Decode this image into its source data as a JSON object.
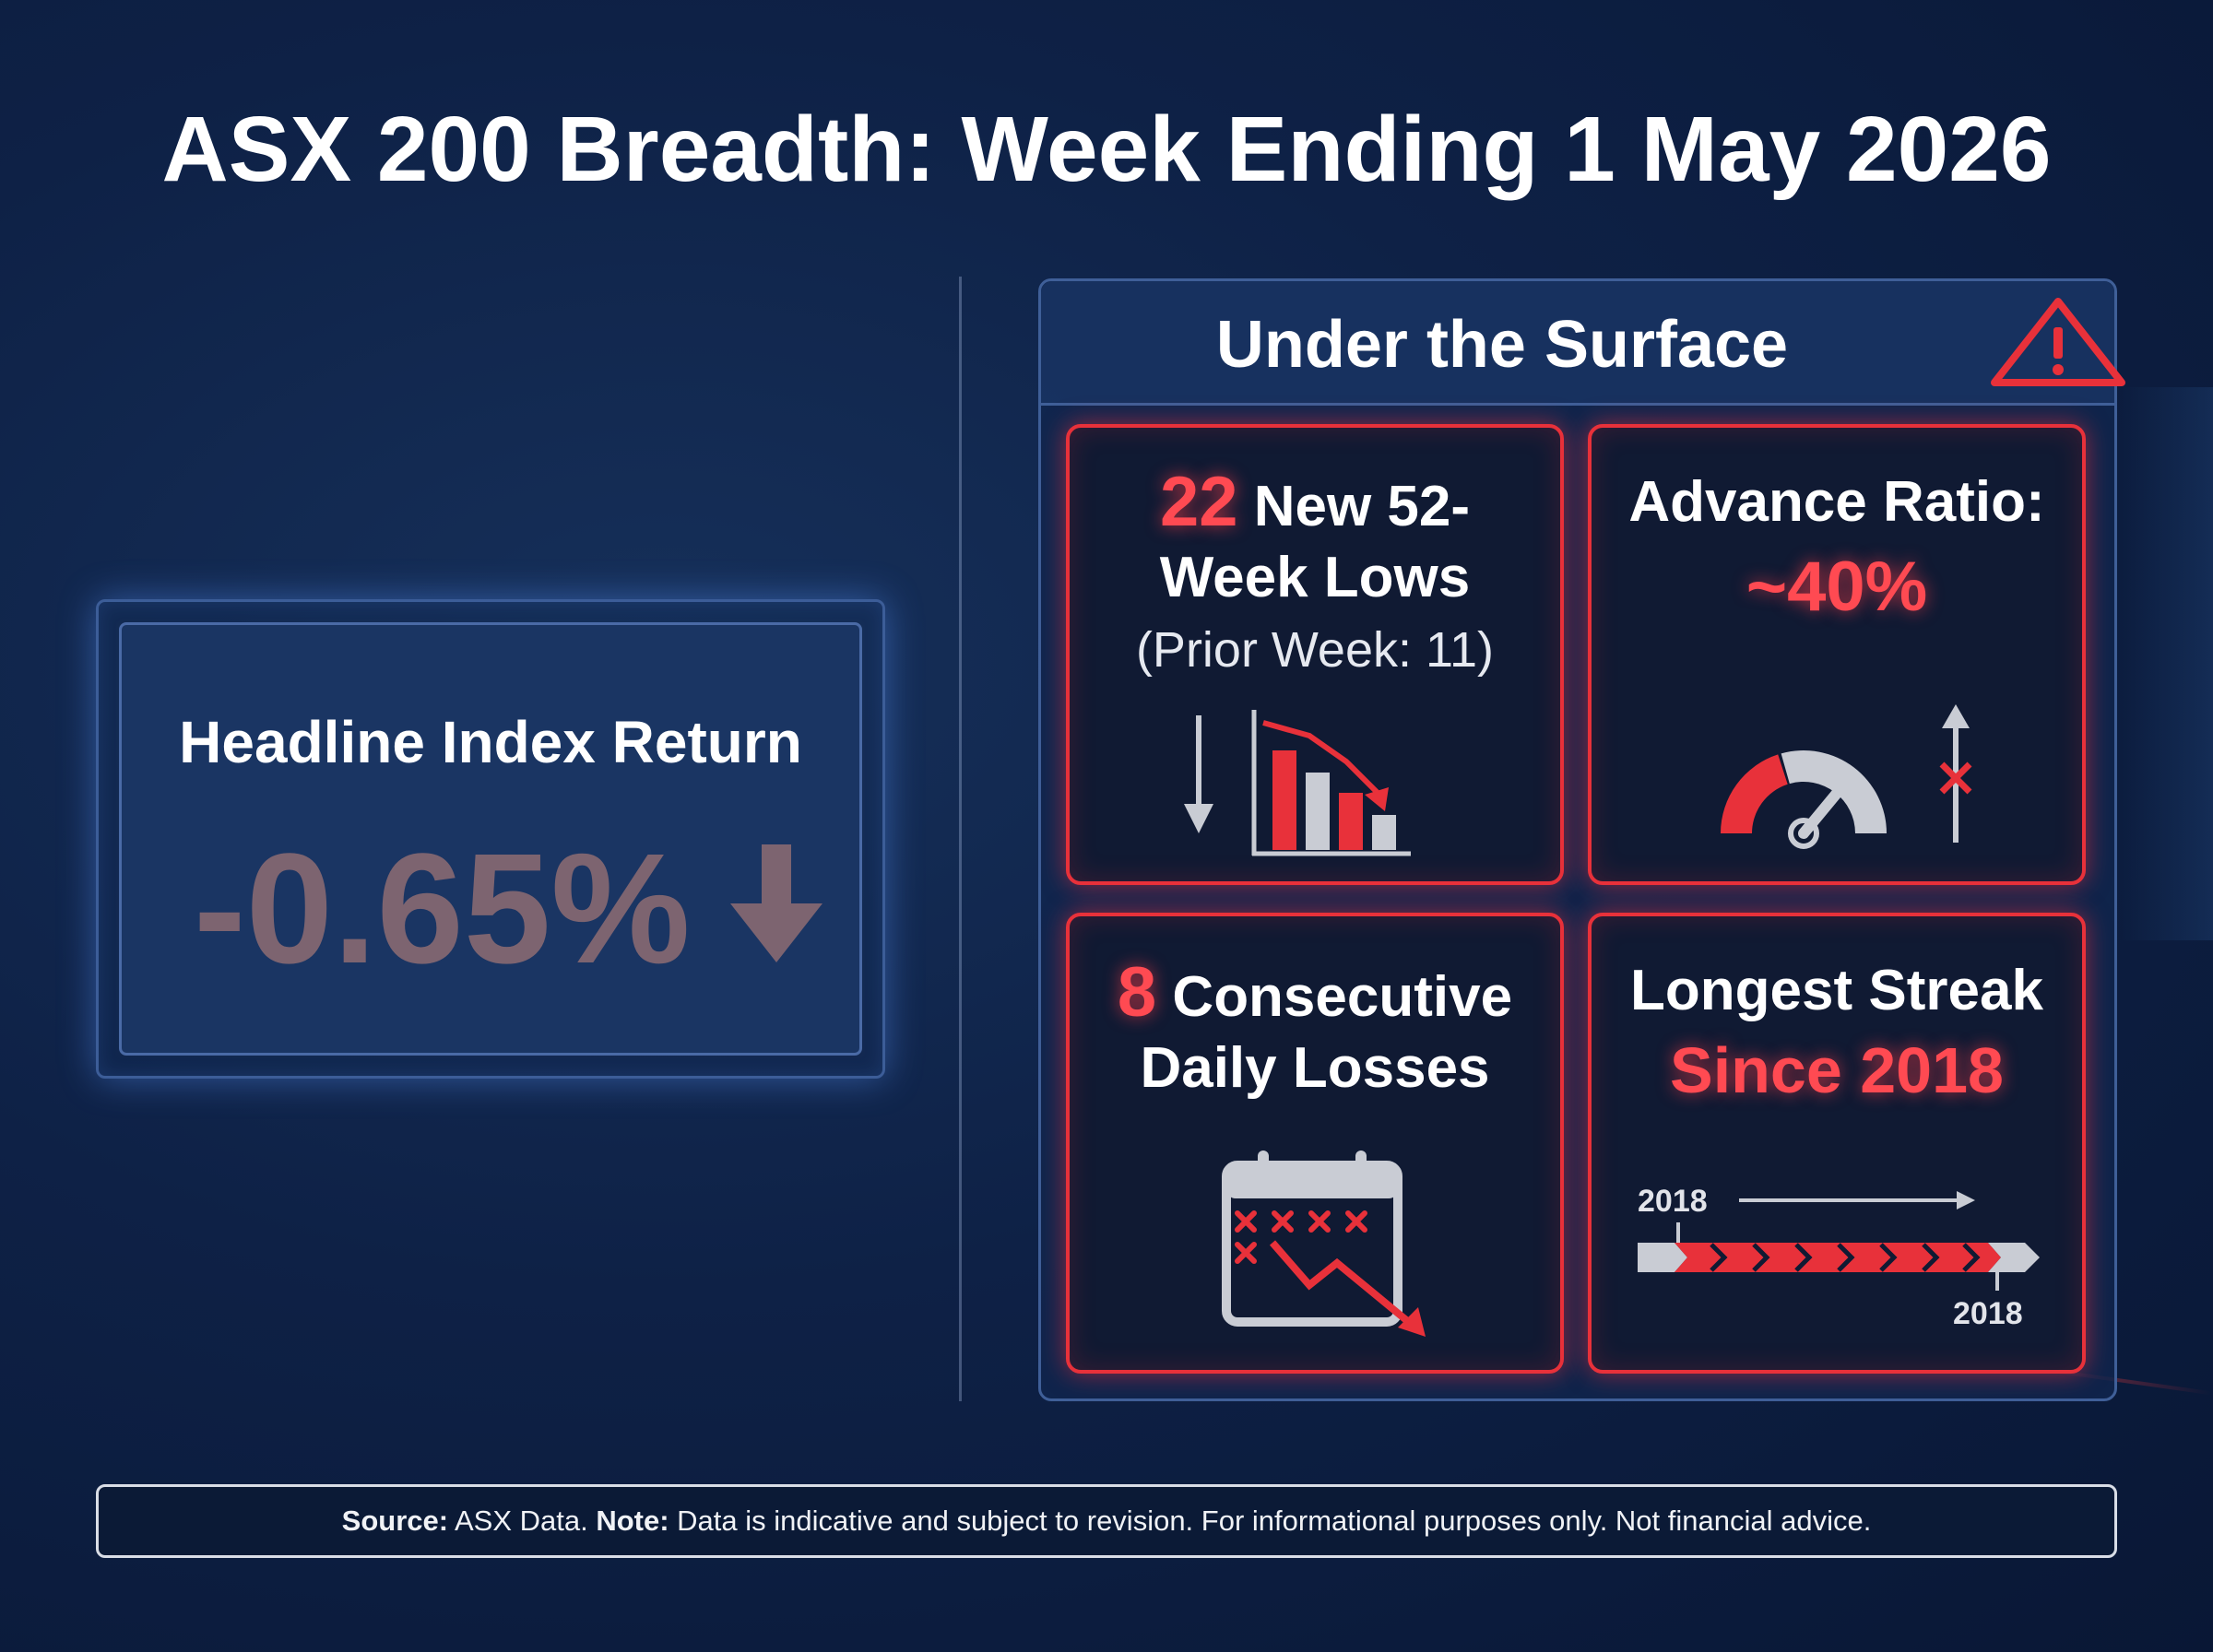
{
  "page": {
    "title": "ASX 200 Breadth: Week Ending 1 May 2026"
  },
  "headline": {
    "label": "Headline Index Return",
    "value": "-0.65%",
    "arrow_icon": "down-arrow-icon",
    "value_color": "#7d6470"
  },
  "surface": {
    "title": "Under the Surface",
    "warning_icon": "warning-triangle-icon",
    "accent_color": "#e8313a",
    "cards": {
      "lows": {
        "number": "22",
        "line1": " New 52-",
        "line2": "Week Lows",
        "prior": "(Prior Week: 11)",
        "icon": "declining-bar-chart-icon"
      },
      "advance": {
        "label": "Advance Ratio:",
        "value": "~40%",
        "icon": "gauge-icon",
        "gauge_level": 0.4
      },
      "losses": {
        "number": "8",
        "line1": " Consecutive",
        "line2": "Daily Losses",
        "icon": "calendar-losses-icon"
      },
      "streak": {
        "line1": "Longest Streak",
        "line2_prefix": "Since ",
        "line2_year": "2018",
        "timeline_start_label": "2018",
        "timeline_end_label": "2018",
        "icon": "timeline-icon"
      }
    }
  },
  "footer": {
    "source_label": "Source:",
    "source_text": " ASX Data. ",
    "note_label": "Note:",
    "note_text": " Data is indicative and subject to revision. For informational purposes only. Not financial advice."
  }
}
